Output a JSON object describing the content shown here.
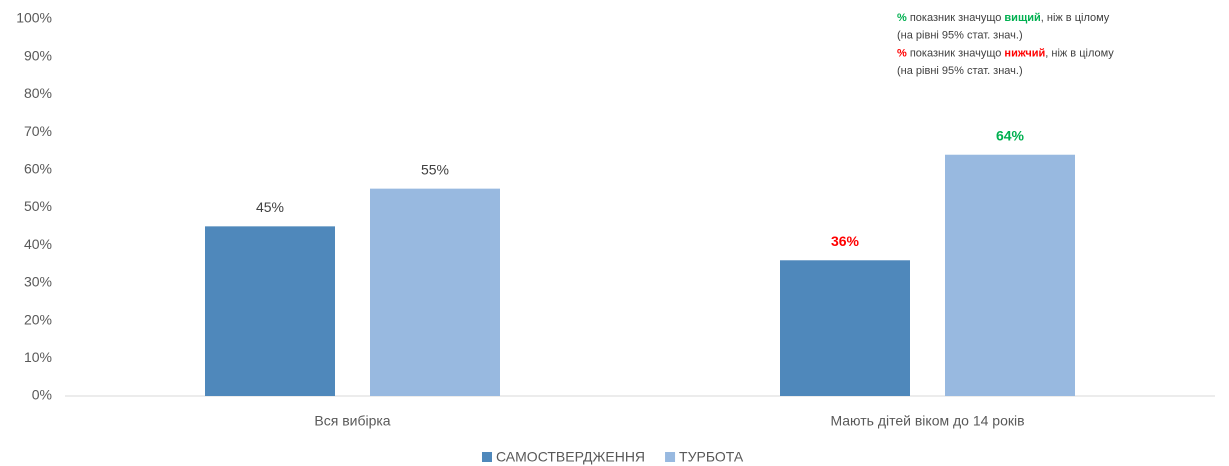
{
  "chart_data": {
    "type": "bar",
    "categories": [
      "Вся вибірка",
      "Мають дітей віком до 14 років"
    ],
    "series": [
      {
        "name": "САМОСТВЕРДЖЕННЯ",
        "color": "#4f88bb",
        "values": [
          45,
          36
        ],
        "value_labels": [
          "45%",
          "36%"
        ],
        "label_colors": [
          "#404040",
          "#ff0000"
        ],
        "label_bold": [
          false,
          true
        ]
      },
      {
        "name": "ТУРБОТА",
        "color": "#98b9e0",
        "values": [
          55,
          64
        ],
        "value_labels": [
          "55%",
          "64%"
        ],
        "label_colors": [
          "#404040",
          "#00b050"
        ],
        "label_bold": [
          false,
          true
        ]
      }
    ],
    "ylim": [
      0,
      100
    ],
    "yticks": [
      {
        "value": 0,
        "label": "0%"
      },
      {
        "value": 10,
        "label": "10%"
      },
      {
        "value": 20,
        "label": "20%"
      },
      {
        "value": 30,
        "label": "30%"
      },
      {
        "value": 40,
        "label": "40%"
      },
      {
        "value": 50,
        "label": "50%"
      },
      {
        "value": 60,
        "label": "60%"
      },
      {
        "value": 70,
        "label": "70%"
      },
      {
        "value": 80,
        "label": "80%"
      },
      {
        "value": 90,
        "label": "90%"
      },
      {
        "value": 100,
        "label": "100%"
      }
    ],
    "grid": false,
    "legend": "bottom",
    "annotations": [
      {
        "parts": [
          {
            "text": "%",
            "color": "#00b050",
            "bold": true
          },
          {
            "text": " показник значущо "
          },
          {
            "text": "вищий",
            "color": "#00b050",
            "bold": true
          },
          {
            "text": ", ніж в цілому"
          }
        ]
      },
      {
        "parts": [
          {
            "text": "(на рівні 95% стат. знач.)"
          }
        ]
      },
      {
        "parts": [
          {
            "text": "%",
            "color": "#ff0000",
            "bold": true
          },
          {
            "text": " показник значущо "
          },
          {
            "text": "нижчий",
            "color": "#ff0000",
            "bold": true
          },
          {
            "text": ", ніж в цілому"
          }
        ]
      },
      {
        "parts": [
          {
            "text": "(на рівні 95% стат. знач.)"
          }
        ]
      }
    ]
  }
}
